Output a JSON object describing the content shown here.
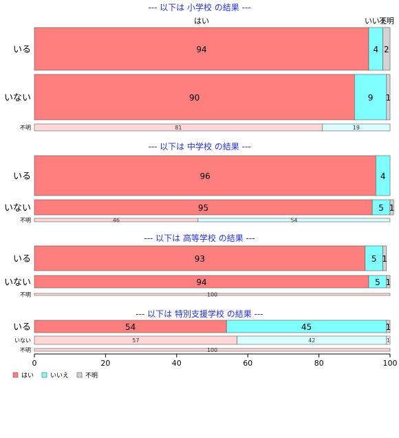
{
  "chart_data": {
    "type": "bar",
    "orientation": "horizontal",
    "stacked": true,
    "percent": true,
    "xlim": [
      0,
      100
    ],
    "x_ticks": [
      0,
      20,
      40,
      60,
      80,
      100
    ],
    "col_labels": [
      "はい",
      "いいえ",
      "不明"
    ],
    "colors": {
      "はい": "#ff7f7f",
      "いいえ": "#7fffff",
      "不明": "#d3d3d3"
    },
    "legend": {
      "position": "bottom-left",
      "entries": [
        "はい",
        "いいえ",
        "不明"
      ]
    },
    "panels": [
      {
        "title": "--- 以下は 小学校 の結果 ---",
        "rows": [
          {
            "label": "いる",
            "values": [
              94,
              4,
              2
            ]
          },
          {
            "label": "いない",
            "values": [
              90,
              9,
              1
            ]
          },
          {
            "label": "不明",
            "values": [
              81,
              19,
              0
            ]
          }
        ]
      },
      {
        "title": "--- 以下は 中学校 の結果 ---",
        "rows": [
          {
            "label": "いる",
            "values": [
              96,
              4,
              0
            ]
          },
          {
            "label": "いない",
            "values": [
              95,
              5,
              1
            ]
          },
          {
            "label": "不明",
            "values": [
              46,
              54,
              0
            ]
          }
        ]
      },
      {
        "title": "--- 以下は 高等学校 の結果 ---",
        "rows": [
          {
            "label": "いる",
            "values": [
              93,
              5,
              1
            ]
          },
          {
            "label": "いない",
            "values": [
              94,
              5,
              1
            ]
          },
          {
            "label": "不明",
            "values": [
              100,
              0,
              0
            ]
          }
        ]
      },
      {
        "title": "--- 以下は 特別支援学校 の結果 ---",
        "rows": [
          {
            "label": "いる",
            "values": [
              54,
              45,
              1
            ]
          },
          {
            "label": "いない",
            "values": [
              57,
              42,
              1
            ]
          },
          {
            "label": "不明",
            "values": [
              100,
              0,
              0
            ]
          }
        ]
      }
    ]
  }
}
